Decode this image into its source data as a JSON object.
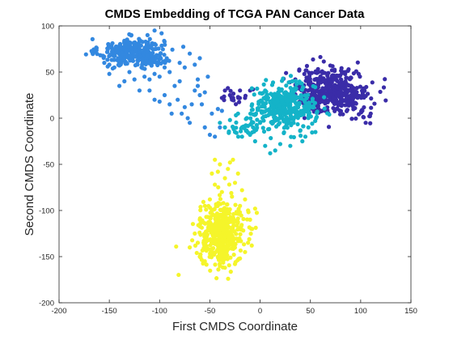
{
  "chart_data": {
    "type": "scatter",
    "title": "CMDS Embedding of TCGA PAN Cancer Data",
    "xlabel": "First CMDS Coordinate",
    "ylabel": "Second CMDS Coordinate",
    "xlim": [
      -200,
      150
    ],
    "ylim": [
      -200,
      100
    ],
    "xticks": [
      -200,
      -150,
      -100,
      -50,
      0,
      50,
      100,
      150
    ],
    "yticks": [
      -200,
      -150,
      -100,
      -50,
      0,
      50,
      100
    ],
    "grid": false,
    "legend": "none",
    "series": [
      {
        "color": "#3a2ca8",
        "clusters": [
          {
            "center": [
              72,
              30
            ],
            "spread": [
              18,
              12
            ],
            "count": 420
          },
          {
            "center": [
              100,
              10
            ],
            "spread": [
              8,
              8
            ],
            "count": 20
          },
          {
            "center": [
              -25,
              25
            ],
            "spread": [
              8,
              6
            ],
            "count": 15
          }
        ],
        "points": [
          [
            -35,
            30
          ],
          [
            -30,
            25
          ],
          [
            -20,
            30
          ],
          [
            -28,
            20
          ],
          [
            -15,
            22
          ],
          [
            -38,
            22
          ],
          [
            -10,
            30
          ],
          [
            105,
            -5
          ],
          [
            110,
            5
          ],
          [
            98,
            48
          ],
          [
            85,
            50
          ],
          [
            35,
            42
          ]
        ]
      },
      {
        "color": "#3388e0",
        "clusters": [
          {
            "center": [
              -128,
              72
            ],
            "spread": [
              16,
              7
            ],
            "count": 300
          },
          {
            "center": [
              -110,
              62
            ],
            "spread": [
              12,
              5
            ],
            "count": 40
          }
        ],
        "points": [
          [
            -135,
            40
          ],
          [
            -140,
            35
          ],
          [
            -120,
            30
          ],
          [
            -115,
            45
          ],
          [
            -130,
            50
          ],
          [
            -125,
            42
          ],
          [
            -110,
            30
          ],
          [
            -105,
            20
          ],
          [
            -100,
            18
          ],
          [
            -95,
            25
          ],
          [
            -90,
            15
          ],
          [
            -88,
            5
          ],
          [
            -85,
            35
          ],
          [
            -80,
            40
          ],
          [
            -82,
            20
          ],
          [
            -75,
            12
          ],
          [
            -72,
            0
          ],
          [
            -70,
            -5
          ],
          [
            -78,
            5
          ],
          [
            -68,
            15
          ],
          [
            -65,
            30
          ],
          [
            -60,
            25
          ],
          [
            -62,
            35
          ],
          [
            -55,
            -10
          ],
          [
            -50,
            -18
          ],
          [
            -45,
            -20
          ],
          [
            -58,
            15
          ],
          [
            -52,
            45
          ],
          [
            -48,
            5
          ],
          [
            -60,
            65
          ],
          [
            -70,
            70
          ],
          [
            -65,
            58
          ],
          [
            -75,
            55
          ],
          [
            -80,
            60
          ],
          [
            -90,
            50
          ],
          [
            -95,
            55
          ],
          [
            -100,
            45
          ],
          [
            -105,
            48
          ],
          [
            -110,
            42
          ],
          [
            -118,
            55
          ],
          [
            -138,
            60
          ],
          [
            -145,
            55
          ],
          [
            -150,
            58
          ],
          [
            -155,
            60
          ],
          [
            -150,
            48
          ],
          [
            -98,
            92
          ],
          [
            -105,
            95
          ],
          [
            -112,
            90
          ],
          [
            -108,
            70
          ],
          [
            -62,
            42
          ],
          [
            -55,
            28
          ],
          [
            -42,
            10
          ],
          [
            -38,
            8
          ],
          [
            -40,
            -10
          ]
        ]
      },
      {
        "color": "#14b3c8",
        "clusters": [
          {
            "center": [
              25,
              12
            ],
            "spread": [
              15,
              12
            ],
            "count": 380
          },
          {
            "center": [
              -15,
              -8
            ],
            "spread": [
              8,
              5
            ],
            "count": 35
          }
        ],
        "points": [
          [
            -40,
            -5
          ],
          [
            -35,
            -10
          ],
          [
            -30,
            -2
          ],
          [
            -22,
            5
          ],
          [
            -25,
            -15
          ],
          [
            -18,
            -20
          ],
          [
            -10,
            -18
          ],
          [
            -5,
            -25
          ],
          [
            5,
            -30
          ],
          [
            10,
            -38
          ],
          [
            15,
            -35
          ],
          [
            20,
            -28
          ],
          [
            8,
            -12
          ],
          [
            45,
            -20
          ],
          [
            42,
            -25
          ],
          [
            55,
            -15
          ],
          [
            48,
            -10
          ],
          [
            30,
            -30
          ],
          [
            -3,
            32
          ],
          [
            5,
            30
          ],
          [
            -8,
            15
          ],
          [
            0,
            -5
          ],
          [
            40,
            38
          ],
          [
            32,
            40
          ],
          [
            12,
            36
          ]
        ]
      },
      {
        "color": "#f5f52a",
        "clusters": [
          {
            "center": [
              -38,
              -125
            ],
            "spread": [
              11,
              16
            ],
            "count": 440
          }
        ],
        "points": [
          [
            -40,
            -50
          ],
          [
            -30,
            -48
          ],
          [
            -22,
            -60
          ],
          [
            -25,
            -70
          ],
          [
            -35,
            -65
          ],
          [
            -45,
            -72
          ],
          [
            -38,
            -80
          ],
          [
            -28,
            -85
          ],
          [
            -15,
            -88
          ],
          [
            -20,
            -95
          ],
          [
            -50,
            -88
          ],
          [
            -55,
            -95
          ],
          [
            -12,
            -100
          ],
          [
            -10,
            -110
          ],
          [
            -8,
            -120
          ],
          [
            -5,
            -98
          ],
          [
            -60,
            -110
          ],
          [
            -65,
            -125
          ],
          [
            -62,
            -135
          ],
          [
            -70,
            -140
          ],
          [
            -60,
            -150
          ],
          [
            -55,
            -155
          ],
          [
            -40,
            -160
          ],
          [
            -35,
            -162
          ],
          [
            -25,
            -158
          ],
          [
            -20,
            -152
          ],
          [
            -15,
            -145
          ],
          [
            -12,
            -135
          ],
          [
            -48,
            -60
          ],
          [
            -18,
            -78
          ],
          [
            -32,
            -55
          ],
          [
            -42,
            -58
          ],
          [
            -27,
            -45
          ],
          [
            -45,
            -45
          ]
        ]
      }
    ]
  }
}
